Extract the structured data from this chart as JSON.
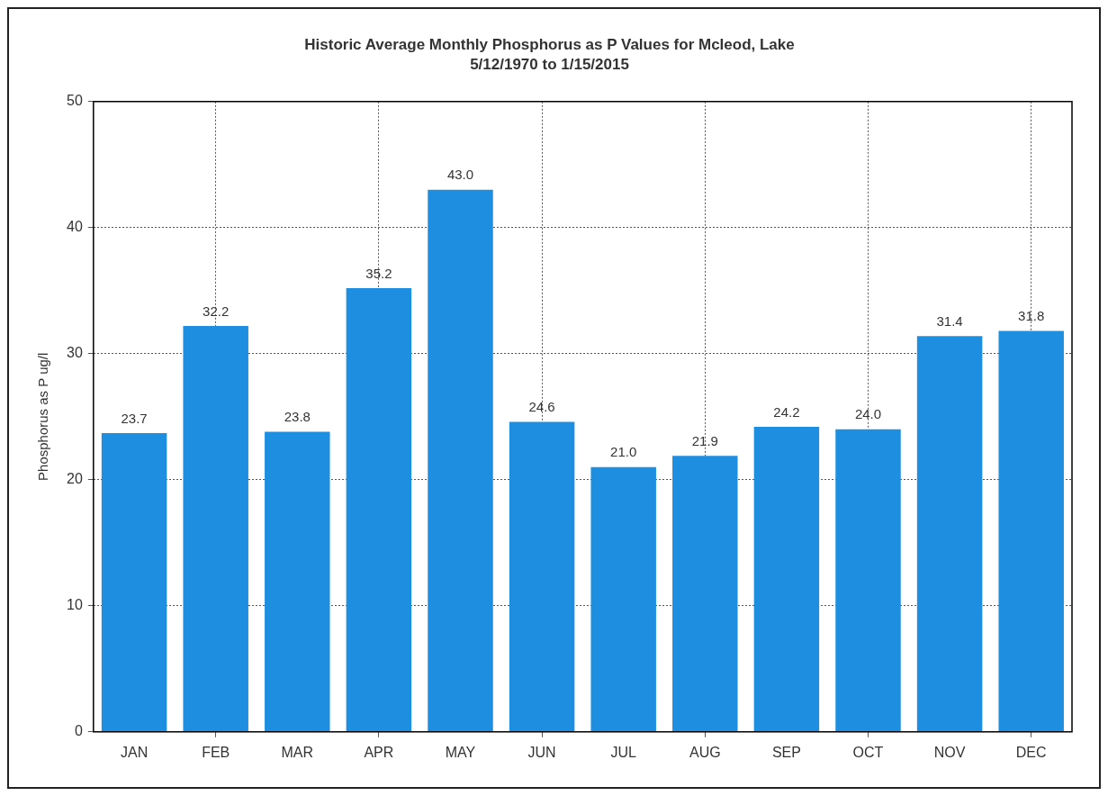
{
  "chart_data": {
    "type": "bar",
    "title": "Historic Average Monthly Phosphorus as P Values for Mcleod, Lake",
    "subtitle": "5/12/1970 to 1/15/2015",
    "ylabel": "Phosphorus as P ug/l",
    "categories": [
      "JAN",
      "FEB",
      "MAR",
      "APR",
      "MAY",
      "JUN",
      "JUL",
      "AUG",
      "SEP",
      "OCT",
      "NOV",
      "DEC"
    ],
    "values": [
      23.7,
      32.2,
      23.8,
      35.2,
      43.0,
      24.6,
      21.0,
      21.9,
      24.2,
      24.0,
      31.4,
      31.8
    ],
    "value_labels": [
      "23.7",
      "32.2",
      "23.8",
      "35.2",
      "43.0",
      "24.6",
      "21.0",
      "21.9",
      "24.2",
      "24.0",
      "31.4",
      "31.8"
    ],
    "color": "#1e8fe0",
    "ylim": [
      0,
      50
    ],
    "yticks": [
      0,
      10,
      20,
      30,
      40,
      50
    ],
    "grid": true,
    "legend": false
  }
}
